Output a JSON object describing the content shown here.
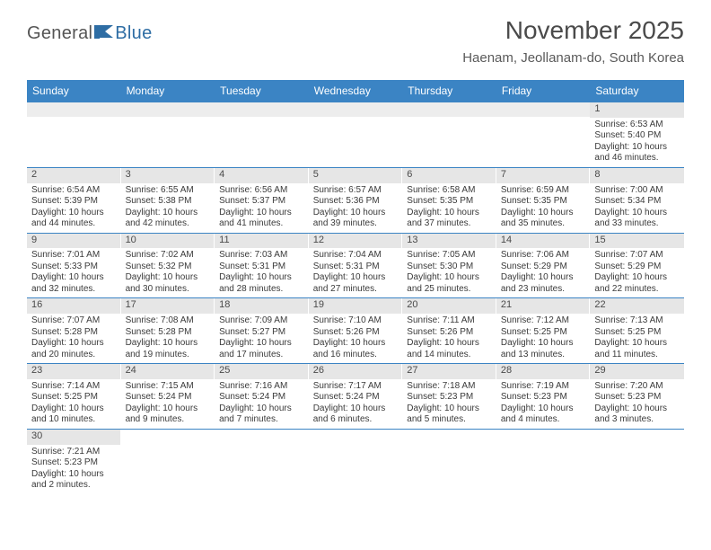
{
  "brand": {
    "part1": "General",
    "part2": "Blue"
  },
  "header": {
    "title": "November 2025",
    "location": "Haenam, Jeollanam-do, South Korea"
  },
  "colors": {
    "header_bg": "#3b84c4",
    "header_text": "#ffffff",
    "daynum_bg": "#e6e6e6",
    "row_divider": "#3b84c4",
    "text": "#3a3a3a",
    "brand_blue": "#2e6da4"
  },
  "day_names": [
    "Sunday",
    "Monday",
    "Tuesday",
    "Wednesday",
    "Thursday",
    "Friday",
    "Saturday"
  ],
  "weeks": [
    [
      null,
      null,
      null,
      null,
      null,
      null,
      {
        "n": "1",
        "sr": "6:53 AM",
        "ss": "5:40 PM",
        "dl": "10 hours and 46 minutes."
      }
    ],
    [
      {
        "n": "2",
        "sr": "6:54 AM",
        "ss": "5:39 PM",
        "dl": "10 hours and 44 minutes."
      },
      {
        "n": "3",
        "sr": "6:55 AM",
        "ss": "5:38 PM",
        "dl": "10 hours and 42 minutes."
      },
      {
        "n": "4",
        "sr": "6:56 AM",
        "ss": "5:37 PM",
        "dl": "10 hours and 41 minutes."
      },
      {
        "n": "5",
        "sr": "6:57 AM",
        "ss": "5:36 PM",
        "dl": "10 hours and 39 minutes."
      },
      {
        "n": "6",
        "sr": "6:58 AM",
        "ss": "5:35 PM",
        "dl": "10 hours and 37 minutes."
      },
      {
        "n": "7",
        "sr": "6:59 AM",
        "ss": "5:35 PM",
        "dl": "10 hours and 35 minutes."
      },
      {
        "n": "8",
        "sr": "7:00 AM",
        "ss": "5:34 PM",
        "dl": "10 hours and 33 minutes."
      }
    ],
    [
      {
        "n": "9",
        "sr": "7:01 AM",
        "ss": "5:33 PM",
        "dl": "10 hours and 32 minutes."
      },
      {
        "n": "10",
        "sr": "7:02 AM",
        "ss": "5:32 PM",
        "dl": "10 hours and 30 minutes."
      },
      {
        "n": "11",
        "sr": "7:03 AM",
        "ss": "5:31 PM",
        "dl": "10 hours and 28 minutes."
      },
      {
        "n": "12",
        "sr": "7:04 AM",
        "ss": "5:31 PM",
        "dl": "10 hours and 27 minutes."
      },
      {
        "n": "13",
        "sr": "7:05 AM",
        "ss": "5:30 PM",
        "dl": "10 hours and 25 minutes."
      },
      {
        "n": "14",
        "sr": "7:06 AM",
        "ss": "5:29 PM",
        "dl": "10 hours and 23 minutes."
      },
      {
        "n": "15",
        "sr": "7:07 AM",
        "ss": "5:29 PM",
        "dl": "10 hours and 22 minutes."
      }
    ],
    [
      {
        "n": "16",
        "sr": "7:07 AM",
        "ss": "5:28 PM",
        "dl": "10 hours and 20 minutes."
      },
      {
        "n": "17",
        "sr": "7:08 AM",
        "ss": "5:28 PM",
        "dl": "10 hours and 19 minutes."
      },
      {
        "n": "18",
        "sr": "7:09 AM",
        "ss": "5:27 PM",
        "dl": "10 hours and 17 minutes."
      },
      {
        "n": "19",
        "sr": "7:10 AM",
        "ss": "5:26 PM",
        "dl": "10 hours and 16 minutes."
      },
      {
        "n": "20",
        "sr": "7:11 AM",
        "ss": "5:26 PM",
        "dl": "10 hours and 14 minutes."
      },
      {
        "n": "21",
        "sr": "7:12 AM",
        "ss": "5:25 PM",
        "dl": "10 hours and 13 minutes."
      },
      {
        "n": "22",
        "sr": "7:13 AM",
        "ss": "5:25 PM",
        "dl": "10 hours and 11 minutes."
      }
    ],
    [
      {
        "n": "23",
        "sr": "7:14 AM",
        "ss": "5:25 PM",
        "dl": "10 hours and 10 minutes."
      },
      {
        "n": "24",
        "sr": "7:15 AM",
        "ss": "5:24 PM",
        "dl": "10 hours and 9 minutes."
      },
      {
        "n": "25",
        "sr": "7:16 AM",
        "ss": "5:24 PM",
        "dl": "10 hours and 7 minutes."
      },
      {
        "n": "26",
        "sr": "7:17 AM",
        "ss": "5:24 PM",
        "dl": "10 hours and 6 minutes."
      },
      {
        "n": "27",
        "sr": "7:18 AM",
        "ss": "5:23 PM",
        "dl": "10 hours and 5 minutes."
      },
      {
        "n": "28",
        "sr": "7:19 AM",
        "ss": "5:23 PM",
        "dl": "10 hours and 4 minutes."
      },
      {
        "n": "29",
        "sr": "7:20 AM",
        "ss": "5:23 PM",
        "dl": "10 hours and 3 minutes."
      }
    ],
    [
      {
        "n": "30",
        "sr": "7:21 AM",
        "ss": "5:23 PM",
        "dl": "10 hours and 2 minutes."
      },
      null,
      null,
      null,
      null,
      null,
      null
    ]
  ],
  "labels": {
    "sunrise": "Sunrise:",
    "sunset": "Sunset:",
    "daylight": "Daylight:"
  }
}
